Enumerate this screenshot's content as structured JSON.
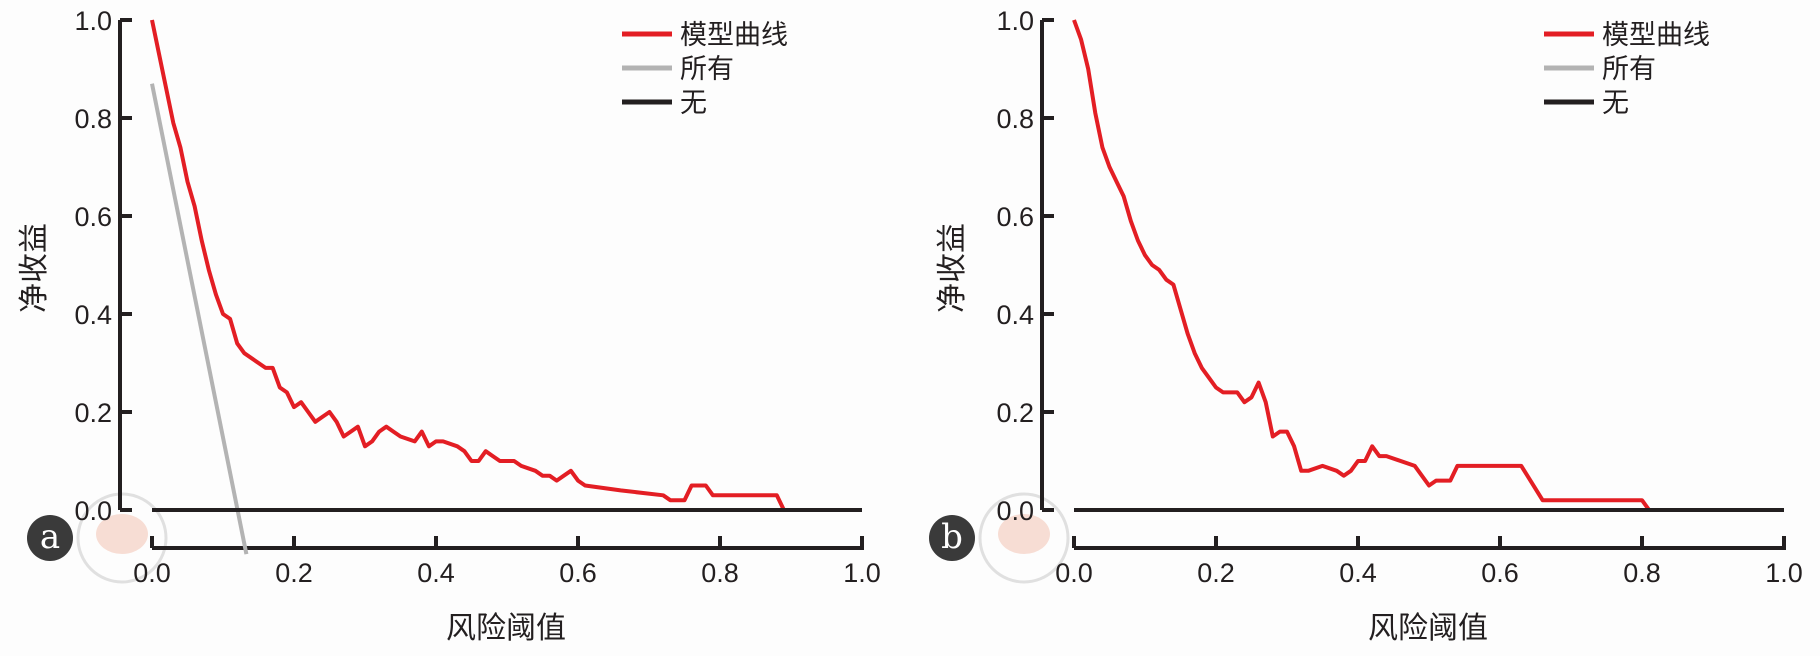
{
  "chart_data": [
    {
      "panel_label": "a",
      "type": "line",
      "title": "",
      "xlabel": "风险阈值",
      "ylabel": "净收益",
      "xlim": [
        0,
        1
      ],
      "ylim": [
        -0.09,
        1.0
      ],
      "x_ticks": [
        "0.0",
        "0.2",
        "0.4",
        "0.6",
        "0.8",
        "1.0"
      ],
      "y_ticks": [
        "0.0",
        "0.2",
        "0.4",
        "0.6",
        "0.8",
        "1.0"
      ],
      "legend_position": "top-right",
      "series": [
        {
          "name": "模型曲线",
          "color": "#e31e24",
          "points": [
            [
              0.0,
              1.0
            ],
            [
              0.01,
              0.93
            ],
            [
              0.02,
              0.86
            ],
            [
              0.03,
              0.79
            ],
            [
              0.04,
              0.74
            ],
            [
              0.05,
              0.67
            ],
            [
              0.06,
              0.62
            ],
            [
              0.07,
              0.55
            ],
            [
              0.08,
              0.49
            ],
            [
              0.09,
              0.44
            ],
            [
              0.1,
              0.4
            ],
            [
              0.11,
              0.39
            ],
            [
              0.12,
              0.34
            ],
            [
              0.13,
              0.32
            ],
            [
              0.15,
              0.3
            ],
            [
              0.16,
              0.29
            ],
            [
              0.17,
              0.29
            ],
            [
              0.18,
              0.25
            ],
            [
              0.19,
              0.24
            ],
            [
              0.2,
              0.21
            ],
            [
              0.21,
              0.22
            ],
            [
              0.22,
              0.2
            ],
            [
              0.23,
              0.18
            ],
            [
              0.24,
              0.19
            ],
            [
              0.25,
              0.2
            ],
            [
              0.26,
              0.18
            ],
            [
              0.27,
              0.15
            ],
            [
              0.28,
              0.16
            ],
            [
              0.29,
              0.17
            ],
            [
              0.3,
              0.13
            ],
            [
              0.31,
              0.14
            ],
            [
              0.32,
              0.16
            ],
            [
              0.33,
              0.17
            ],
            [
              0.34,
              0.16
            ],
            [
              0.35,
              0.15
            ],
            [
              0.37,
              0.14
            ],
            [
              0.38,
              0.16
            ],
            [
              0.39,
              0.13
            ],
            [
              0.4,
              0.14
            ],
            [
              0.41,
              0.14
            ],
            [
              0.43,
              0.13
            ],
            [
              0.44,
              0.12
            ],
            [
              0.45,
              0.1
            ],
            [
              0.46,
              0.1
            ],
            [
              0.47,
              0.12
            ],
            [
              0.48,
              0.11
            ],
            [
              0.49,
              0.1
            ],
            [
              0.51,
              0.1
            ],
            [
              0.52,
              0.09
            ],
            [
              0.54,
              0.08
            ],
            [
              0.55,
              0.07
            ],
            [
              0.56,
              0.07
            ],
            [
              0.57,
              0.06
            ],
            [
              0.58,
              0.07
            ],
            [
              0.59,
              0.08
            ],
            [
              0.6,
              0.06
            ],
            [
              0.61,
              0.05
            ],
            [
              0.66,
              0.04
            ],
            [
              0.72,
              0.03
            ],
            [
              0.73,
              0.02
            ],
            [
              0.75,
              0.02
            ],
            [
              0.76,
              0.05
            ],
            [
              0.78,
              0.05
            ],
            [
              0.79,
              0.03
            ],
            [
              0.85,
              0.03
            ],
            [
              0.88,
              0.03
            ],
            [
              0.89,
              0.0
            ],
            [
              1.0,
              0.0
            ]
          ]
        },
        {
          "name": "所有",
          "color": "#b3b3b3",
          "points": [
            [
              0.0,
              0.87
            ],
            [
              0.133,
              -0.09
            ]
          ]
        },
        {
          "name": "无",
          "color": "#231f20",
          "points": [
            [
              0.0,
              0.0
            ],
            [
              1.0,
              0.0
            ]
          ]
        }
      ]
    },
    {
      "panel_label": "b",
      "type": "line",
      "title": "",
      "xlabel": "风险阈值",
      "ylabel": "净收益",
      "xlim": [
        0,
        1
      ],
      "ylim": [
        -0.09,
        1.0
      ],
      "x_ticks": [
        "0.0",
        "0.2",
        "0.4",
        "0.6",
        "0.8",
        "1.0"
      ],
      "y_ticks": [
        "0.0",
        "0.2",
        "0.4",
        "0.6",
        "0.8",
        "1.0"
      ],
      "legend_position": "top-right",
      "series": [
        {
          "name": "模型曲线",
          "color": "#e31e24",
          "points": [
            [
              0.0,
              1.0
            ],
            [
              0.01,
              0.96
            ],
            [
              0.02,
              0.9
            ],
            [
              0.03,
              0.81
            ],
            [
              0.04,
              0.74
            ],
            [
              0.05,
              0.7
            ],
            [
              0.06,
              0.67
            ],
            [
              0.07,
              0.64
            ],
            [
              0.08,
              0.59
            ],
            [
              0.09,
              0.55
            ],
            [
              0.1,
              0.52
            ],
            [
              0.11,
              0.5
            ],
            [
              0.12,
              0.49
            ],
            [
              0.13,
              0.47
            ],
            [
              0.14,
              0.46
            ],
            [
              0.15,
              0.41
            ],
            [
              0.16,
              0.36
            ],
            [
              0.17,
              0.32
            ],
            [
              0.18,
              0.29
            ],
            [
              0.19,
              0.27
            ],
            [
              0.2,
              0.25
            ],
            [
              0.21,
              0.24
            ],
            [
              0.23,
              0.24
            ],
            [
              0.24,
              0.22
            ],
            [
              0.25,
              0.23
            ],
            [
              0.26,
              0.26
            ],
            [
              0.27,
              0.22
            ],
            [
              0.28,
              0.15
            ],
            [
              0.29,
              0.16
            ],
            [
              0.3,
              0.16
            ],
            [
              0.31,
              0.13
            ],
            [
              0.32,
              0.08
            ],
            [
              0.33,
              0.08
            ],
            [
              0.35,
              0.09
            ],
            [
              0.37,
              0.08
            ],
            [
              0.38,
              0.07
            ],
            [
              0.39,
              0.08
            ],
            [
              0.4,
              0.1
            ],
            [
              0.41,
              0.1
            ],
            [
              0.42,
              0.13
            ],
            [
              0.43,
              0.11
            ],
            [
              0.44,
              0.11
            ],
            [
              0.48,
              0.09
            ],
            [
              0.5,
              0.05
            ],
            [
              0.51,
              0.06
            ],
            [
              0.53,
              0.06
            ],
            [
              0.54,
              0.09
            ],
            [
              0.63,
              0.09
            ],
            [
              0.66,
              0.02
            ],
            [
              0.8,
              0.02
            ],
            [
              0.81,
              0.0
            ],
            [
              1.0,
              0.0
            ]
          ]
        },
        {
          "name": "所有",
          "color": "#b3b3b3",
          "points": []
        },
        {
          "name": "无",
          "color": "#231f20",
          "points": [
            [
              0.0,
              0.0
            ],
            [
              1.0,
              0.0
            ]
          ]
        }
      ]
    }
  ]
}
